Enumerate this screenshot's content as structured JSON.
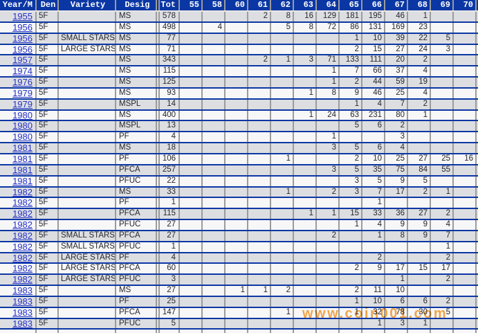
{
  "columns": [
    "Year/M",
    "Den",
    "Variety",
    "Desig",
    "Tot",
    "55",
    "58",
    "60",
    "61",
    "62",
    "63",
    "64",
    "65",
    "66",
    "67",
    "68",
    "69",
    "70"
  ],
  "grade_columns": [
    "55",
    "58",
    "60",
    "61",
    "62",
    "63",
    "64",
    "65",
    "66",
    "67",
    "68",
    "69",
    "70"
  ],
  "rows": [
    {
      "year": "1955",
      "den": "5F",
      "variety": "",
      "desig": "MS",
      "tot": "578",
      "grades": [
        "",
        "",
        "",
        "2",
        "8",
        "16",
        "129",
        "181",
        "195",
        "46",
        "1",
        "",
        ""
      ]
    },
    {
      "year": "1956",
      "den": "5F",
      "variety": "",
      "desig": "MS",
      "tot": "498",
      "grades": [
        "",
        "4",
        "",
        "",
        "5",
        "8",
        "72",
        "86",
        "131",
        "169",
        "23",
        "",
        ""
      ]
    },
    {
      "year": "1956",
      "den": "5F",
      "variety": "SMALL STARS",
      "desig": "MS",
      "tot": "77",
      "grades": [
        "",
        "",
        "",
        "",
        "",
        "",
        "",
        "1",
        "10",
        "39",
        "22",
        "5",
        ""
      ]
    },
    {
      "year": "1956",
      "den": "5F",
      "variety": "LARGE STARS",
      "desig": "MS",
      "tot": "71",
      "grades": [
        "",
        "",
        "",
        "",
        "",
        "",
        "",
        "2",
        "15",
        "27",
        "24",
        "3",
        ""
      ]
    },
    {
      "year": "1957",
      "den": "5F",
      "variety": "",
      "desig": "MS",
      "tot": "343",
      "grades": [
        "",
        "",
        "",
        "2",
        "1",
        "3",
        "71",
        "133",
        "111",
        "20",
        "2",
        "",
        ""
      ]
    },
    {
      "year": "1974",
      "den": "5F",
      "variety": "",
      "desig": "MS",
      "tot": "115",
      "grades": [
        "",
        "",
        "",
        "",
        "",
        "",
        "1",
        "7",
        "66",
        "37",
        "4",
        "",
        ""
      ]
    },
    {
      "year": "1976",
      "den": "5F",
      "variety": "",
      "desig": "MS",
      "tot": "125",
      "grades": [
        "",
        "",
        "",
        "",
        "",
        "",
        "1",
        "2",
        "44",
        "59",
        "19",
        "",
        ""
      ]
    },
    {
      "year": "1979",
      "den": "5F",
      "variety": "",
      "desig": "MS",
      "tot": "93",
      "grades": [
        "",
        "",
        "",
        "",
        "",
        "1",
        "8",
        "9",
        "46",
        "25",
        "4",
        "",
        ""
      ]
    },
    {
      "year": "1979",
      "den": "5F",
      "variety": "",
      "desig": "MSPL",
      "tot": "14",
      "grades": [
        "",
        "",
        "",
        "",
        "",
        "",
        "",
        "1",
        "4",
        "7",
        "2",
        "",
        ""
      ]
    },
    {
      "year": "1980",
      "den": "5F",
      "variety": "",
      "desig": "MS",
      "tot": "400",
      "grades": [
        "",
        "",
        "",
        "",
        "",
        "1",
        "24",
        "63",
        "231",
        "80",
        "1",
        "",
        ""
      ]
    },
    {
      "year": "1980",
      "den": "5F",
      "variety": "",
      "desig": "MSPL",
      "tot": "13",
      "grades": [
        "",
        "",
        "",
        "",
        "",
        "",
        "",
        "5",
        "6",
        "2",
        "",
        "",
        ""
      ]
    },
    {
      "year": "1980",
      "den": "5F",
      "variety": "",
      "desig": "PF",
      "tot": "4",
      "grades": [
        "",
        "",
        "",
        "",
        "",
        "",
        "1",
        "",
        "",
        "3",
        "",
        "",
        ""
      ]
    },
    {
      "year": "1981",
      "den": "5F",
      "variety": "",
      "desig": "MS",
      "tot": "18",
      "grades": [
        "",
        "",
        "",
        "",
        "",
        "",
        "3",
        "5",
        "6",
        "4",
        "",
        "",
        ""
      ]
    },
    {
      "year": "1981",
      "den": "5F",
      "variety": "",
      "desig": "PF",
      "tot": "106",
      "grades": [
        "",
        "",
        "",
        "",
        "1",
        "",
        "",
        "2",
        "10",
        "25",
        "27",
        "25",
        "16"
      ]
    },
    {
      "year": "1981",
      "den": "5F",
      "variety": "",
      "desig": "PFCA",
      "tot": "257",
      "grades": [
        "",
        "",
        "",
        "",
        "",
        "",
        "3",
        "5",
        "35",
        "75",
        "84",
        "55",
        ""
      ]
    },
    {
      "year": "1981",
      "den": "5F",
      "variety": "",
      "desig": "PFUC",
      "tot": "22",
      "grades": [
        "",
        "",
        "",
        "",
        "",
        "",
        "",
        "3",
        "5",
        "9",
        "5",
        "",
        ""
      ]
    },
    {
      "year": "1982",
      "den": "5F",
      "variety": "",
      "desig": "MS",
      "tot": "33",
      "grades": [
        "",
        "",
        "",
        "",
        "1",
        "",
        "2",
        "3",
        "7",
        "17",
        "2",
        "1",
        ""
      ]
    },
    {
      "year": "1982",
      "den": "5F",
      "variety": "",
      "desig": "PF",
      "tot": "1",
      "grades": [
        "",
        "",
        "",
        "",
        "",
        "",
        "",
        "",
        "1",
        "",
        "",
        "",
        ""
      ]
    },
    {
      "year": "1982",
      "den": "5F",
      "variety": "",
      "desig": "PFCA",
      "tot": "115",
      "grades": [
        "",
        "",
        "",
        "",
        "",
        "1",
        "1",
        "15",
        "33",
        "36",
        "27",
        "2",
        ""
      ]
    },
    {
      "year": "1982",
      "den": "5F",
      "variety": "",
      "desig": "PFUC",
      "tot": "27",
      "grades": [
        "",
        "",
        "",
        "",
        "",
        "",
        "",
        "1",
        "4",
        "9",
        "9",
        "4",
        ""
      ]
    },
    {
      "year": "1982",
      "den": "5F",
      "variety": "SMALL STARS",
      "desig": "PFCA",
      "tot": "27",
      "grades": [
        "",
        "",
        "",
        "",
        "",
        "",
        "2",
        "",
        "1",
        "8",
        "9",
        "7",
        ""
      ]
    },
    {
      "year": "1982",
      "den": "5F",
      "variety": "SMALL STARS",
      "desig": "PFUC",
      "tot": "1",
      "grades": [
        "",
        "",
        "",
        "",
        "",
        "",
        "",
        "",
        "",
        "",
        "",
        "1",
        ""
      ]
    },
    {
      "year": "1982",
      "den": "5F",
      "variety": "LARGE STARS",
      "desig": "PF",
      "tot": "4",
      "grades": [
        "",
        "",
        "",
        "",
        "",
        "",
        "",
        "",
        "2",
        "",
        "",
        "2",
        ""
      ]
    },
    {
      "year": "1982",
      "den": "5F",
      "variety": "LARGE STARS",
      "desig": "PFCA",
      "tot": "60",
      "grades": [
        "",
        "",
        "",
        "",
        "",
        "",
        "",
        "2",
        "9",
        "17",
        "15",
        "17",
        ""
      ]
    },
    {
      "year": "1982",
      "den": "5F",
      "variety": "LARGE STARS",
      "desig": "PFUC",
      "tot": "3",
      "grades": [
        "",
        "",
        "",
        "",
        "",
        "",
        "",
        "",
        "",
        "1",
        "",
        "2",
        ""
      ]
    },
    {
      "year": "1983",
      "den": "5F",
      "variety": "",
      "desig": "MS",
      "tot": "27",
      "grades": [
        "",
        "",
        "1",
        "1",
        "2",
        "",
        "",
        "2",
        "11",
        "10",
        "",
        "",
        ""
      ]
    },
    {
      "year": "1983",
      "den": "5F",
      "variety": "",
      "desig": "PF",
      "tot": "25",
      "grades": [
        "",
        "",
        "",
        "",
        "",
        "",
        "",
        "1",
        "10",
        "6",
        "6",
        "2",
        ""
      ]
    },
    {
      "year": "1983",
      "den": "5F",
      "variety": "",
      "desig": "PFCA",
      "tot": "147",
      "grades": [
        "",
        "",
        "",
        "",
        "1",
        "",
        "",
        "1",
        "32",
        "78",
        "30",
        "5",
        ""
      ]
    },
    {
      "year": "1983",
      "den": "5F",
      "variety": "",
      "desig": "PFUC",
      "tot": "5",
      "grades": [
        "",
        "",
        "",
        "",
        "",
        "",
        "",
        "",
        "1",
        "3",
        "1",
        "",
        ""
      ]
    }
  ],
  "watermark": {
    "text": "www.coin001.com"
  },
  "colors": {
    "header_bg": "#0B37A4",
    "header_text": "#FFFFFF",
    "row_separator": "#0B37A4",
    "grid_gray": "#9B9B9B",
    "row_alt": "#DDDEE1",
    "row_white": "#F7F7F8",
    "year_link": "#2432C8",
    "cell_text": "#27272E",
    "watermark": "#F7941E"
  }
}
